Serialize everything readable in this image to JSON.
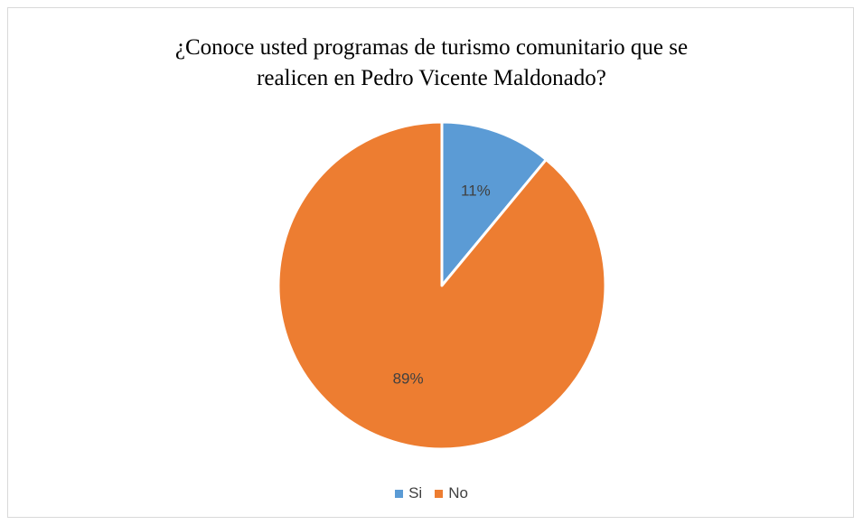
{
  "chart_data": {
    "type": "pie",
    "title": "¿Conoce usted programas de turismo comunitario que se realicen en Pedro Vicente Maldonado?",
    "title_lines": [
      "¿Conoce usted programas de turismo comunitario que se",
      "realicen en Pedro Vicente Maldonado?"
    ],
    "categories": [
      "Si",
      "No"
    ],
    "values": [
      11,
      89
    ],
    "data_labels": [
      "11%",
      "89%"
    ],
    "colors": [
      "#5B9BD5",
      "#ED7D31"
    ],
    "legend_position": "bottom"
  }
}
